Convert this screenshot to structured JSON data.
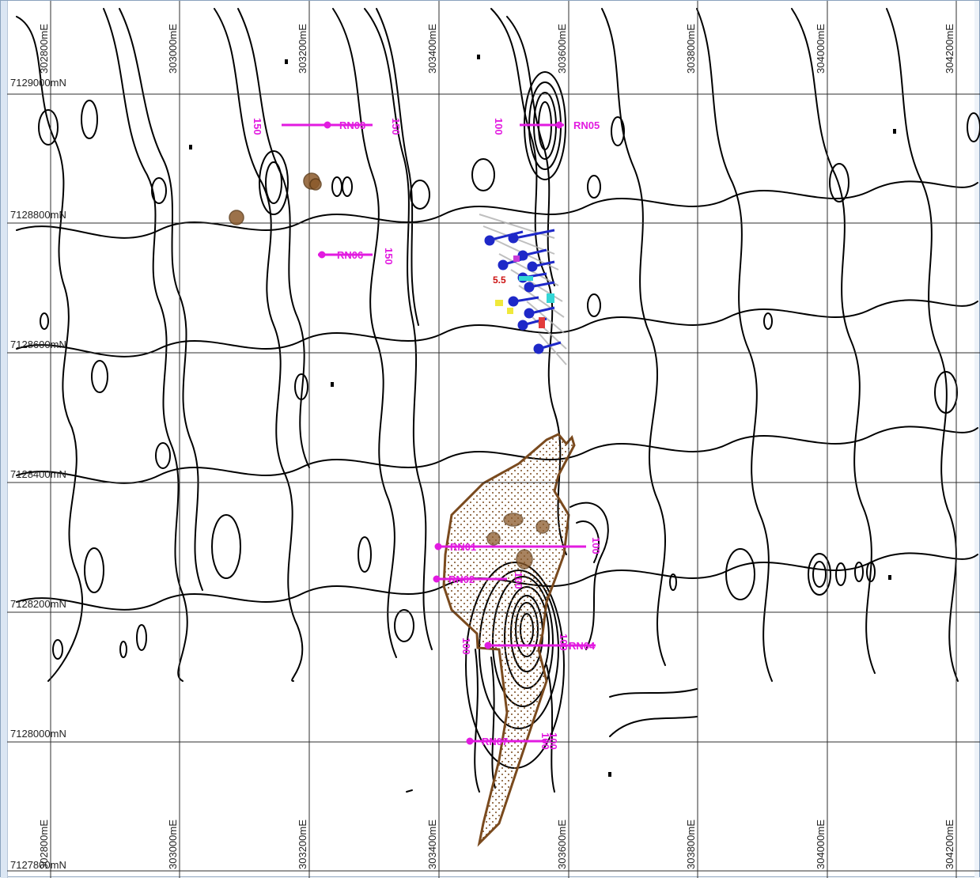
{
  "map": {
    "easting_labels": [
      "302800mE",
      "303000mE",
      "303200mE",
      "303400mE",
      "303600mE",
      "303800mE",
      "304000mE",
      "304200mE"
    ],
    "northing_labels": [
      "7129000mN",
      "7128800mN",
      "7128600mN",
      "7128400mN",
      "7128200mN",
      "7128000mN",
      "7127800mN"
    ],
    "contour_values": [
      "150",
      "150",
      "100",
      "150",
      "100",
      "100",
      "100",
      "100",
      "100",
      "100"
    ],
    "drill_lines": [
      {
        "label": "RN03"
      },
      {
        "label": "RN05"
      },
      {
        "label": "RN06"
      },
      {
        "label": "RN01"
      },
      {
        "label": "RN02"
      },
      {
        "label": "RN04"
      },
      {
        "label": "RN07"
      }
    ],
    "assay_label": "5.5",
    "colors": {
      "contour": "#000000",
      "grid": "#2f2f2f",
      "survey_lines": "#e21be0",
      "drillholes": "#1e28c8",
      "outcrop_polygon": "#7a4a1e",
      "pits": "#8b5a2b"
    }
  }
}
